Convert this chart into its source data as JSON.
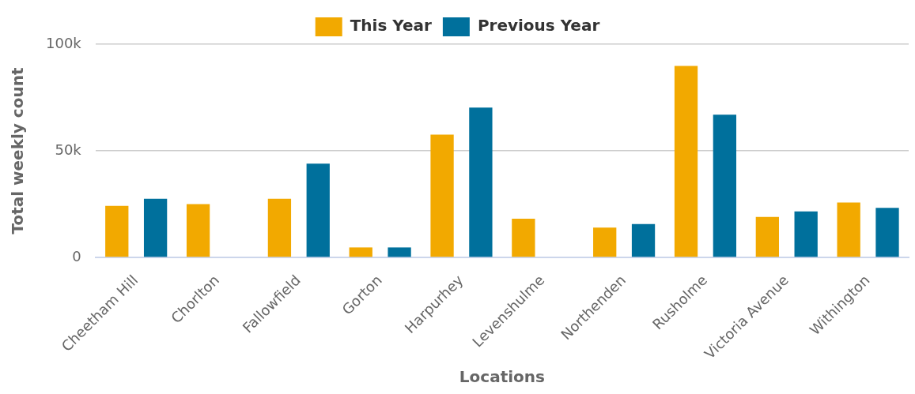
{
  "chart_data": {
    "type": "bar",
    "xlabel": "Locations",
    "ylabel": "Total weekly count",
    "categories": [
      "Cheetham Hill",
      "Chorlton",
      "Fallowfield",
      "Gorton",
      "Harpurhey",
      "Levenshulme",
      "Northenden",
      "Rusholme",
      "Victoria Avenue",
      "Withington"
    ],
    "series": [
      {
        "name": "This Year",
        "color": "#f2a900",
        "values": [
          24200,
          25000,
          27500,
          4700,
          57600,
          18200,
          14000,
          89800,
          19000,
          25800
        ]
      },
      {
        "name": "Previous Year",
        "color": "#00709c",
        "values": [
          27500,
          null,
          44000,
          4700,
          70300,
          null,
          15700,
          67000,
          21600,
          23300
        ]
      }
    ],
    "ylim": [
      0,
      100000
    ],
    "yticks": [
      {
        "value": 0,
        "label": "0"
      },
      {
        "value": 50000,
        "label": "50k"
      },
      {
        "value": 100000,
        "label": "100k"
      }
    ],
    "grid": "y",
    "legend": "top"
  }
}
